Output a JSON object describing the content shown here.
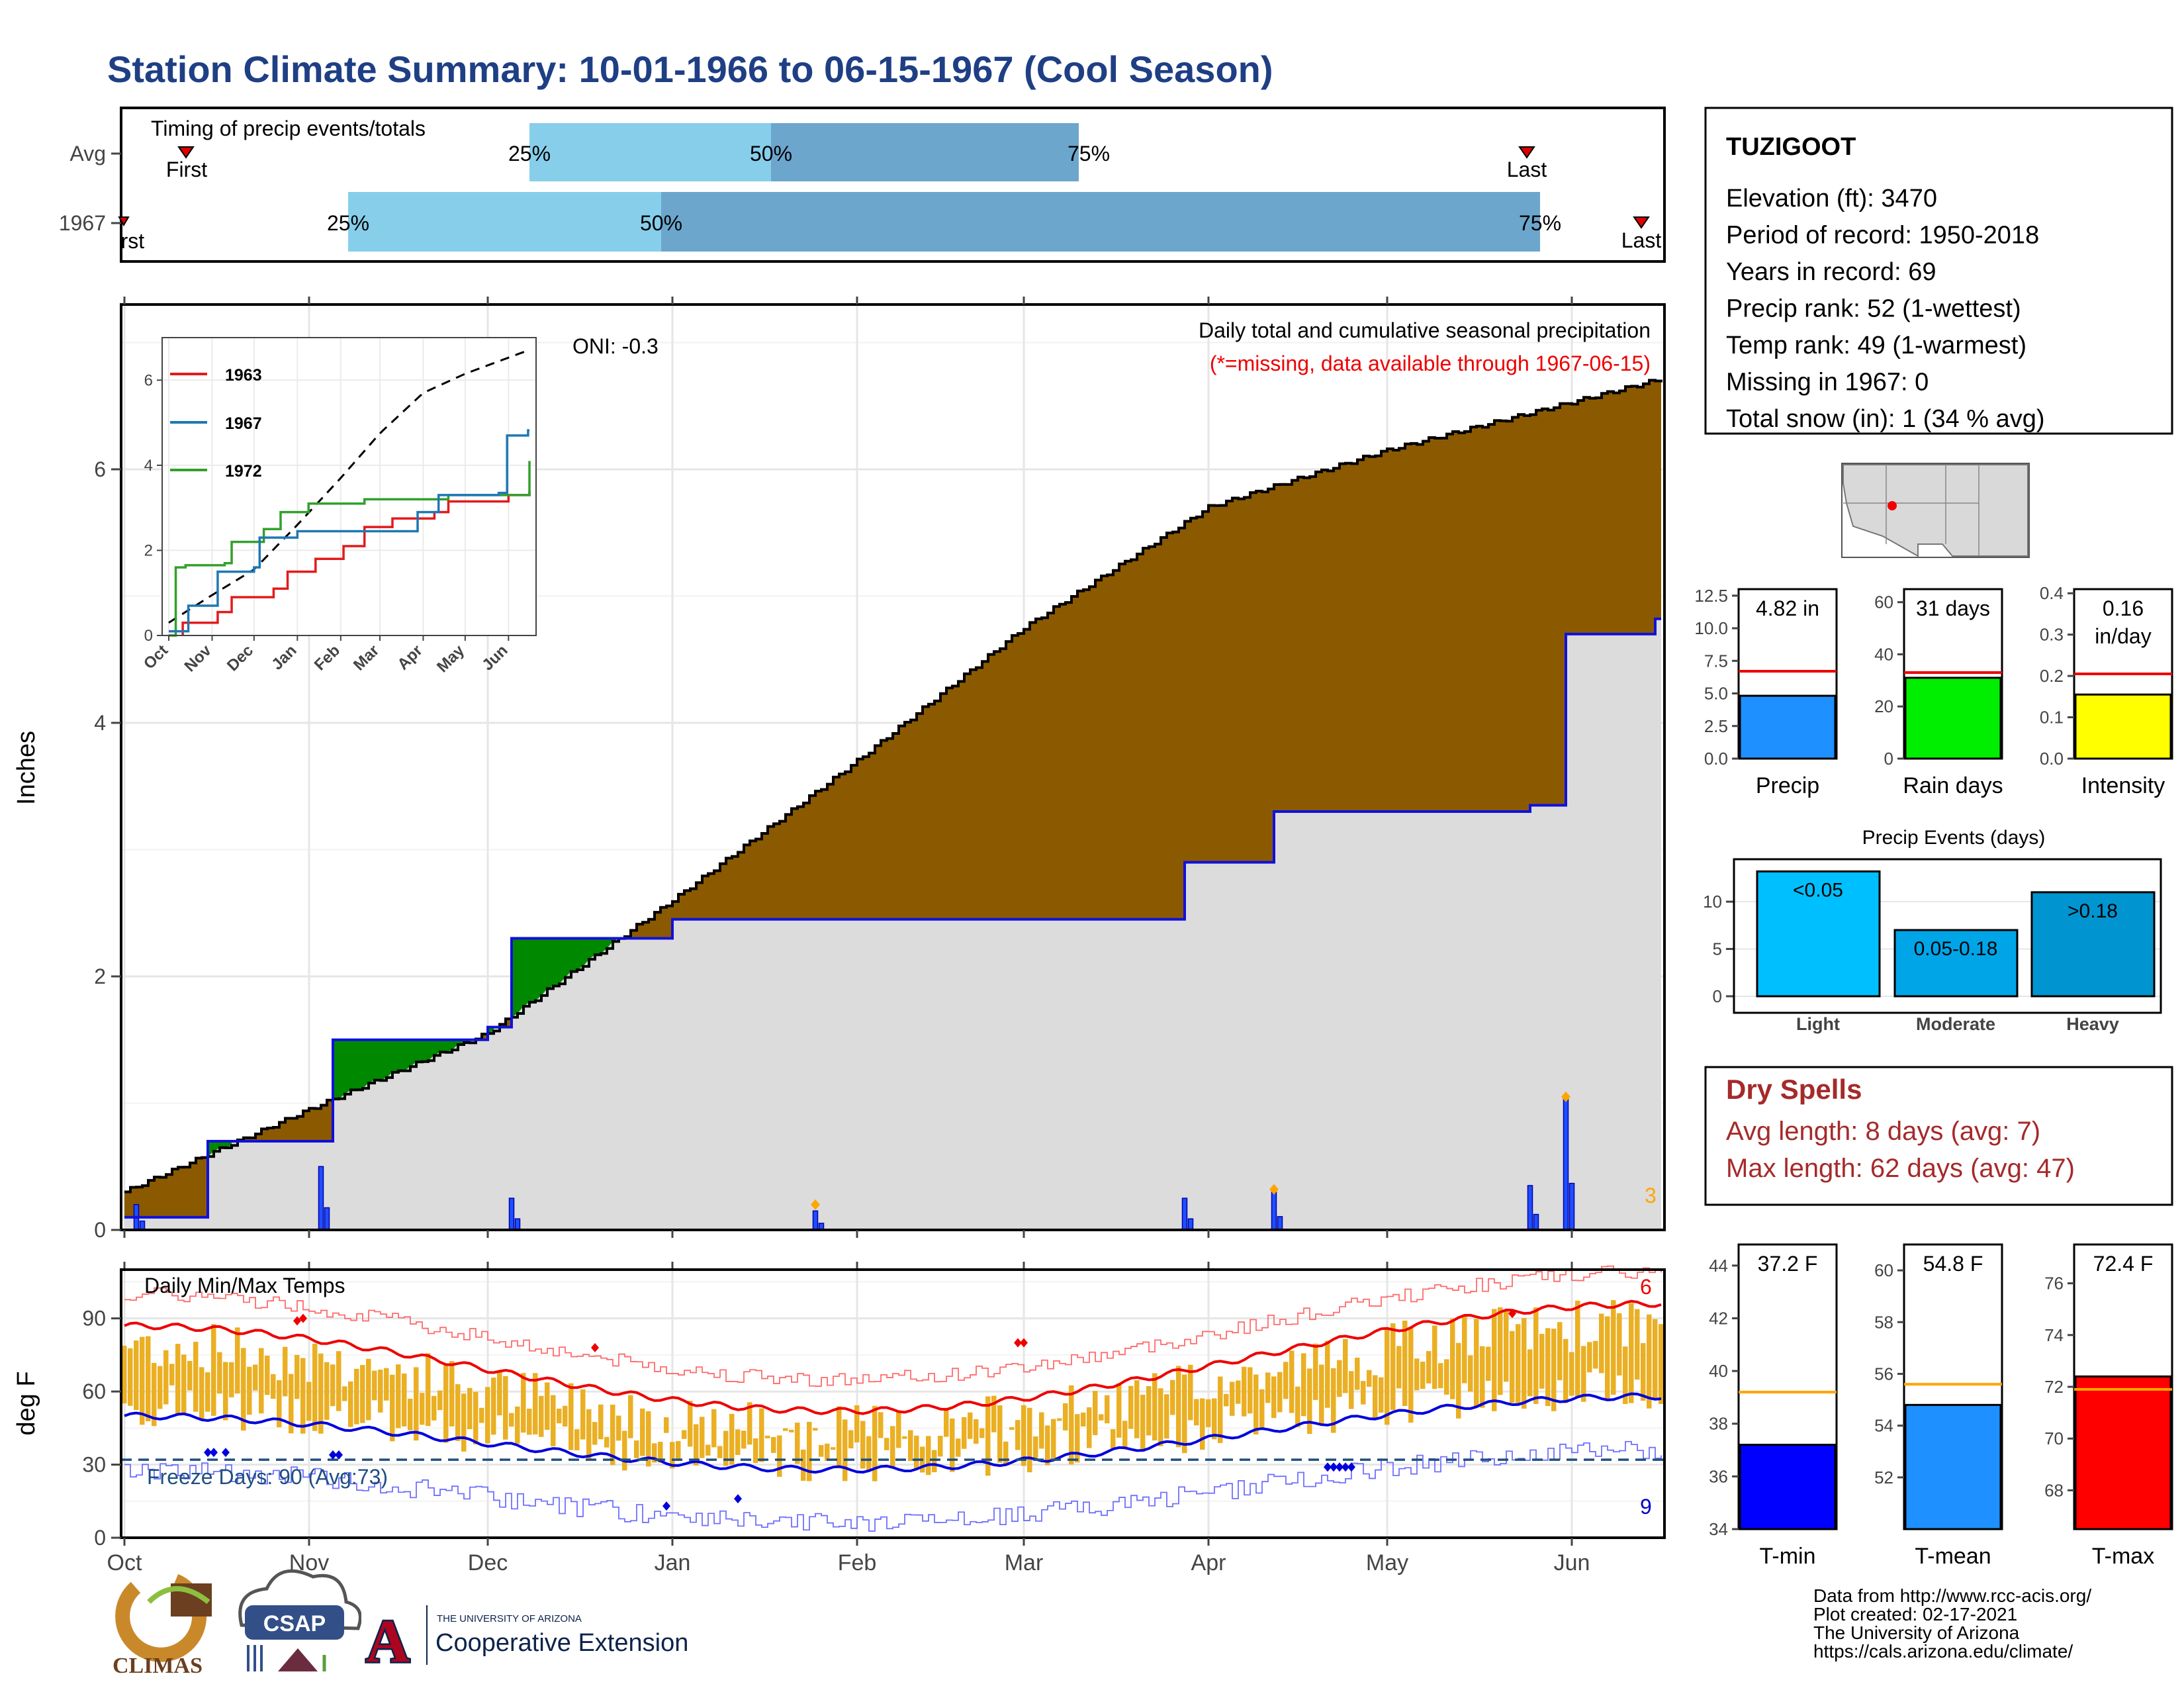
{
  "title": "Station Climate Summary: 10-01-1966 to 06-15-1967 (Cool Season)",
  "station": {
    "name": "TUZIGOOT",
    "lines": [
      "Elevation (ft): 3470",
      "Period of record: 1950-2018",
      "Years in record: 69",
      "Precip rank: 52 (1-wettest)",
      "Temp rank: 49 (1-warmest)",
      "Missing in 1967: 0",
      "Total snow (in): 1 (34 % avg)"
    ]
  },
  "timing": {
    "title": "Timing of precip events/totals",
    "rows": [
      {
        "label": "Avg",
        "p25": "25%",
        "p50": "50%",
        "p75": "75%",
        "first": "First",
        "last": "Last"
      },
      {
        "label": "1967",
        "p25": "25%",
        "p50": "50%",
        "p75": "75%",
        "first": "First",
        "last": "Last"
      }
    ]
  },
  "precip_panel": {
    "ylabel": "Inches",
    "legend_title": "Daily total and cumulative seasonal precipitation",
    "missing_note": "(*=missing, data available through 1967-06-15)",
    "oni": "ONI: -0.3",
    "count_label": "3",
    "yticks": [
      "0",
      "2",
      "4",
      "6"
    ]
  },
  "inset": {
    "series": [
      "1963",
      "1967",
      "1972"
    ],
    "yticks": [
      "0",
      "2",
      "4",
      "6"
    ],
    "xticks": [
      "Oct",
      "Nov",
      "Dec",
      "Jan",
      "Feb",
      "Mar",
      "Apr",
      "May",
      "Jun"
    ]
  },
  "temp_panel": {
    "ylabel": "deg F",
    "title": "Daily Min/Max Temps",
    "freeze": "Freeze Days: 90 (Avg:73)",
    "hot_count": "6",
    "cold_count": "9",
    "yticks": [
      "0",
      "30",
      "60",
      "90"
    ]
  },
  "months": [
    "Oct",
    "Nov",
    "Dec",
    "Jan",
    "Feb",
    "Mar",
    "Apr",
    "May",
    "Jun"
  ],
  "summary_bars": {
    "precip": {
      "label": "Precip",
      "value_text": "4.82 in",
      "value": 4.82,
      "avg": 6.7,
      "yticks": [
        "0.0",
        "2.5",
        "5.0",
        "7.5",
        "10.0",
        "12.5"
      ]
    },
    "raindays": {
      "label": "Rain days",
      "value_text": "31 days",
      "value": 31,
      "avg": 33,
      "yticks": [
        "0",
        "20",
        "40",
        "60"
      ]
    },
    "intensity": {
      "label": "Intensity",
      "value_text_1": "0.16",
      "value_text_2": "in/day",
      "value": 0.155,
      "avg": 0.205,
      "yticks": [
        "0.0",
        "0.1",
        "0.2",
        "0.3",
        "0.4"
      ]
    }
  },
  "events": {
    "title": "Precip Events (days)",
    "yticks": [
      "0",
      "5",
      "10"
    ],
    "bars": [
      {
        "label": "Light",
        "range": "<0.05",
        "value": 13.2,
        "color": "#00bfff"
      },
      {
        "label": "Moderate",
        "range": "0.05-0.18",
        "value": 7,
        "color": "#00a5e8"
      },
      {
        "label": "Heavy",
        "range": ">0.18",
        "value": 11,
        "color": "#0095d0"
      }
    ]
  },
  "dry_spells": {
    "title": "Dry Spells",
    "avg": "Avg length: 8 days (avg: 7)",
    "max": "Max length: 62 days (avg: 47)"
  },
  "temp_bars": {
    "tmin": {
      "label": "T-min",
      "value_text": "37.2 F",
      "value": 37.2,
      "avg": 39.2,
      "yticks": [
        "34",
        "36",
        "38",
        "40",
        "42",
        "44"
      ]
    },
    "tmean": {
      "label": "T-mean",
      "value_text": "54.8 F",
      "value": 54.8,
      "avg": 55.6,
      "yticks": [
        "52",
        "54",
        "56",
        "58",
        "60"
      ]
    },
    "tmax": {
      "label": "T-max",
      "value_text": "72.4 F",
      "value": 72.4,
      "avg": 71.9,
      "yticks": [
        "68",
        "70",
        "72",
        "74",
        "76"
      ]
    }
  },
  "footer": {
    "lines": [
      "Data from http://www.rcc-acis.org/",
      "Plot created: 02-17-2021",
      "The University of Arizona",
      "https://cals.arizona.edu/climate/"
    ]
  },
  "logos": {
    "climas": "CLIMAS",
    "csap": "CSAP",
    "ua_small": "THE UNIVERSITY OF ARIZONA",
    "ua_big": "Cooperative Extension",
    "ua_letter": "A"
  },
  "chart_data": {
    "type": "area",
    "cumulative_precip_1967": {
      "x": [
        "1966-10-01",
        "1966-10-15",
        "1966-11-01",
        "1966-11-05",
        "1966-12-01",
        "1966-12-05",
        "1967-01-01",
        "1967-01-25",
        "1967-03-28",
        "1967-04-12",
        "1967-05-25",
        "1967-05-31",
        "1967-06-15"
      ],
      "y": [
        0.1,
        0.7,
        0.7,
        1.5,
        1.6,
        2.3,
        2.45,
        2.45,
        2.9,
        3.3,
        3.35,
        4.7,
        4.82
      ]
    },
    "cumulative_precip_avg": {
      "x": [
        "1966-10-01",
        "1966-11-01",
        "1966-12-01",
        "1967-01-01",
        "1967-02-01",
        "1967-03-01",
        "1967-04-01",
        "1967-05-01",
        "1967-06-15"
      ],
      "y": [
        0.3,
        0.95,
        1.55,
        2.6,
        3.7,
        4.75,
        5.7,
        6.15,
        6.7
      ]
    },
    "daily_precip_peaks": [
      {
        "x": "1966-10-03",
        "y": 0.2
      },
      {
        "x": "1966-11-03",
        "y": 0.5
      },
      {
        "x": "1966-12-05",
        "y": 0.25
      },
      {
        "x": "1967-01-25",
        "y": 0.15
      },
      {
        "x": "1967-03-28",
        "y": 0.25
      },
      {
        "x": "1967-04-12",
        "y": 0.3
      },
      {
        "x": "1967-05-25",
        "y": 0.35
      },
      {
        "x": "1967-05-31",
        "y": 1.05
      }
    ],
    "temp_ylim": [
      0,
      110
    ],
    "freeze_line": 32,
    "avg_max_start": 87,
    "avg_max_mid": 52,
    "avg_max_end": 96,
    "avg_min_start": 50,
    "avg_min_mid": 28,
    "avg_min_end": 58,
    "precip_ylim": [
      0,
      7.3
    ]
  }
}
